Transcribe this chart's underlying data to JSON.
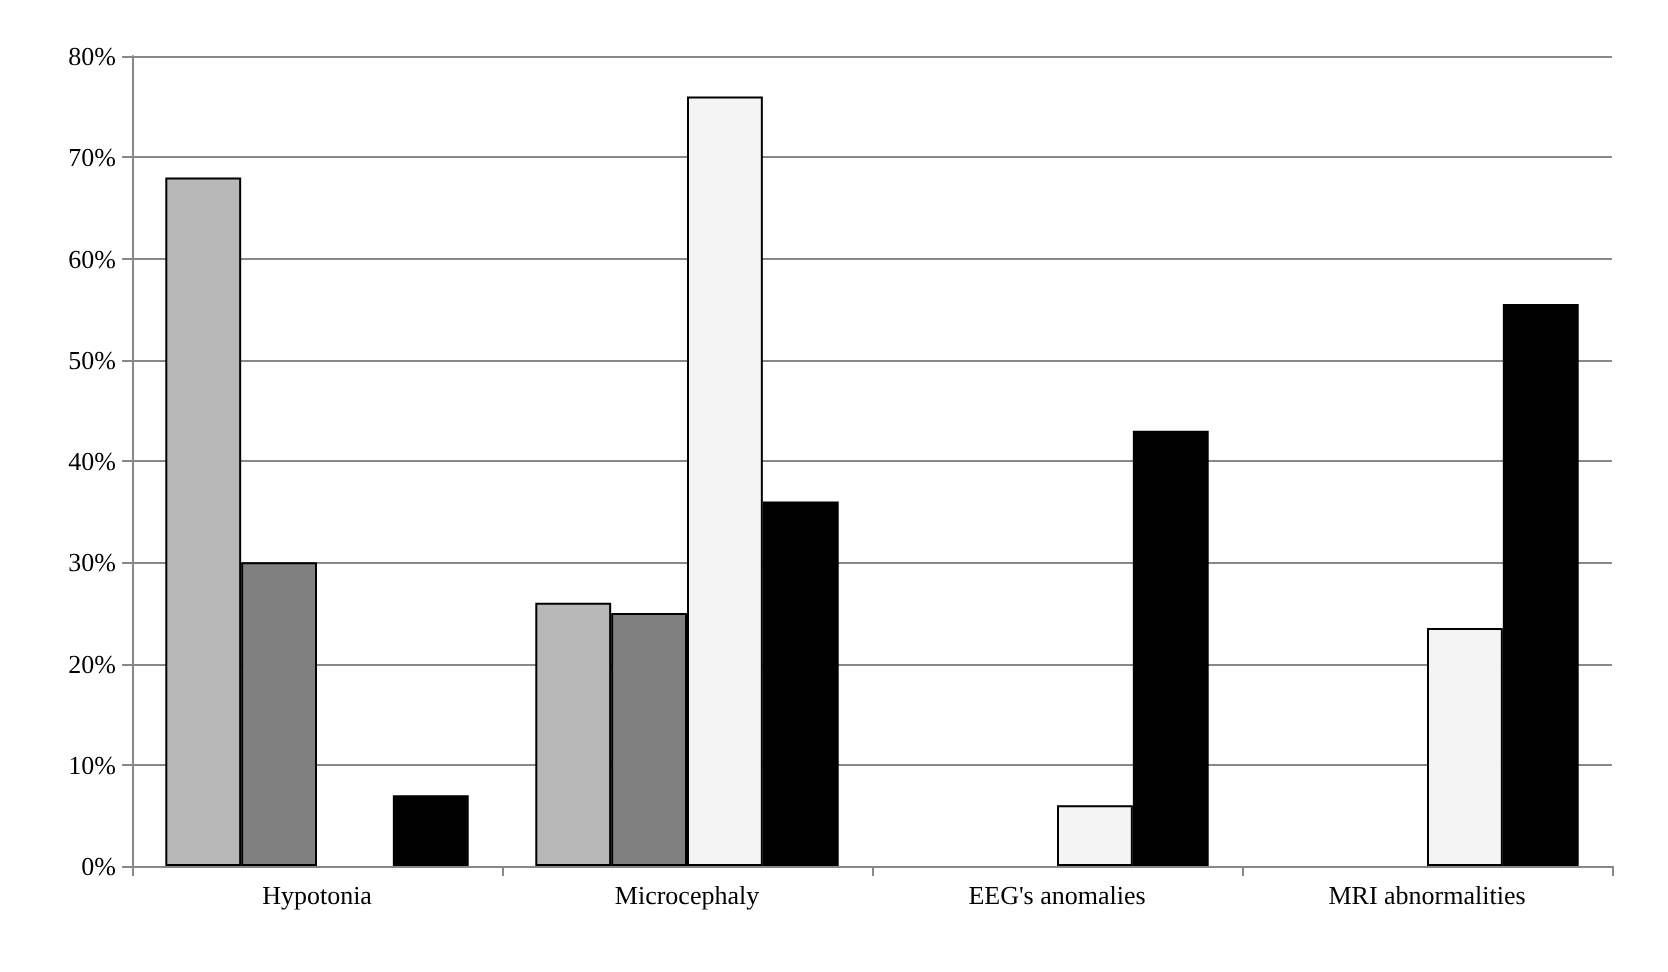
{
  "chart_data": {
    "type": "bar",
    "categories": [
      "Hypotonia",
      "Microcephaly",
      "EEG's anomalies",
      "MRI abnormalities"
    ],
    "series": [
      {
        "color": "#b8b8b8",
        "values": [
          68,
          26,
          null,
          null
        ]
      },
      {
        "color": "#808080",
        "values": [
          30,
          25,
          null,
          null
        ]
      },
      {
        "color": "#f4f4f4",
        "values": [
          null,
          76,
          6,
          23.5
        ]
      },
      {
        "color": "#000000",
        "values": [
          7,
          36,
          43,
          55.5
        ]
      }
    ],
    "ylim": [
      0,
      80
    ],
    "yticks": [
      {
        "value": 0,
        "label": "0%"
      },
      {
        "value": 10,
        "label": "10%"
      },
      {
        "value": 20,
        "label": "20%"
      },
      {
        "value": 30,
        "label": "30%"
      },
      {
        "value": 40,
        "label": "40%"
      },
      {
        "value": 50,
        "label": "50%"
      },
      {
        "value": 60,
        "label": "60%"
      },
      {
        "value": 70,
        "label": "70%"
      },
      {
        "value": 80,
        "label": "80%"
      }
    ],
    "grid": true
  }
}
